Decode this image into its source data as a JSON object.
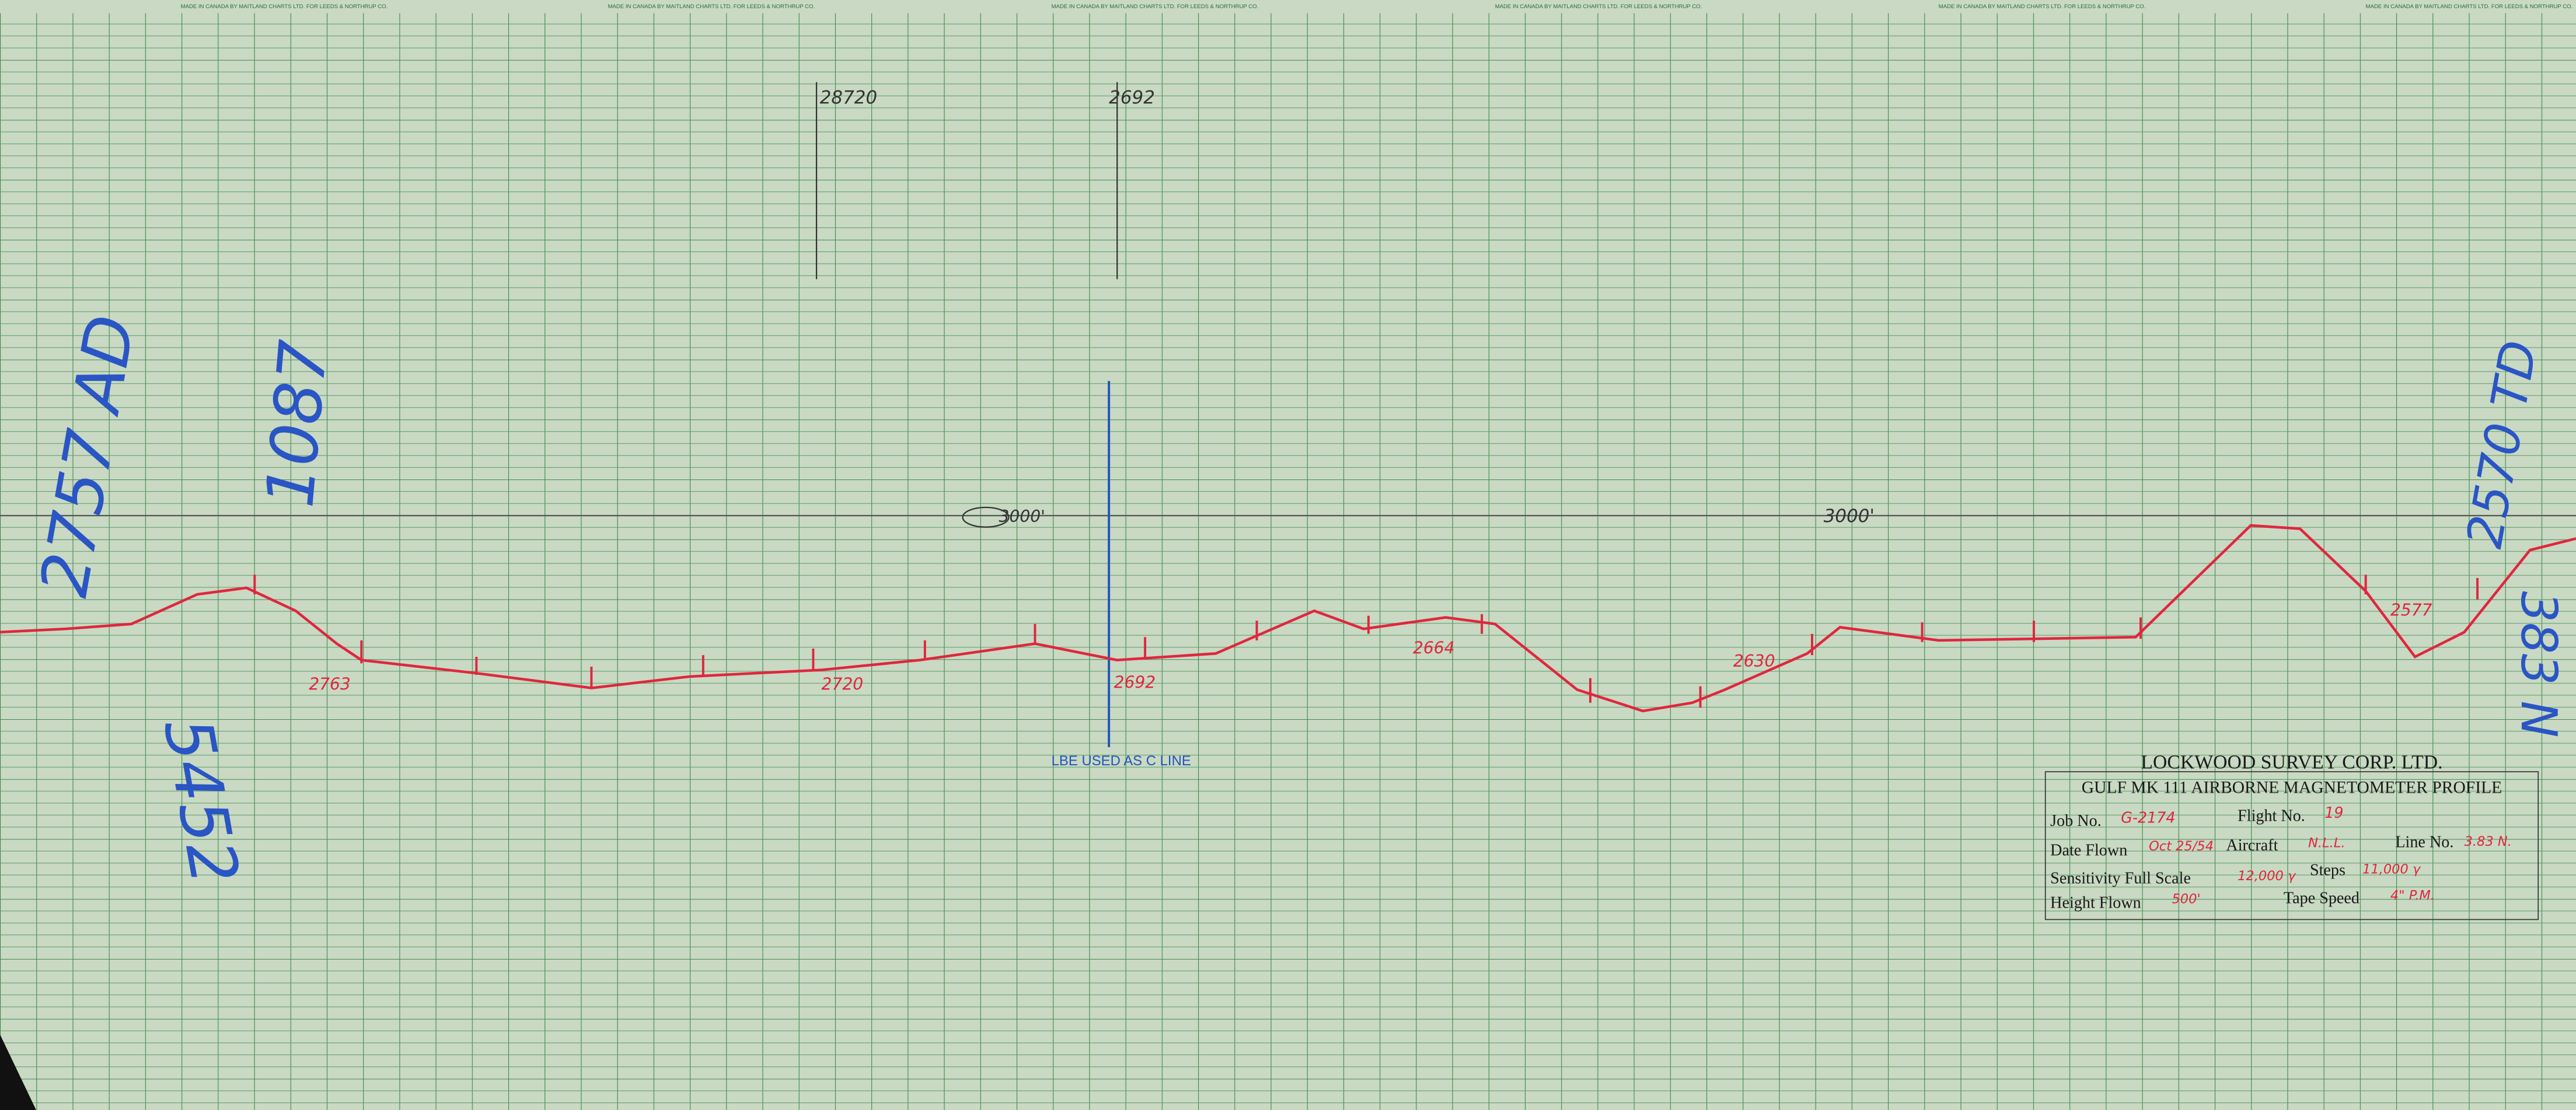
{
  "margin_text": "MADE IN CANADA BY MAITLAND CHARTS LTD. FOR LEEDS & NORTHRUP CO.",
  "title_block": {
    "company": "LOCKWOOD SURVEY CORP. LTD.",
    "profile": "GULF MK 111 AIRBORNE MAGNETOMETER PROFILE",
    "fields": [
      {
        "label": "Job No.",
        "value": "G-2174"
      },
      {
        "label": "Flight No.",
        "value": "19"
      },
      {
        "label": "Date Flown",
        "value": "Oct 25/54"
      },
      {
        "label": "Aircraft",
        "value": "N.L.L."
      },
      {
        "label": "Line No.",
        "value": "3.83 N."
      },
      {
        "label": "Sensitivity Full Scale",
        "value": "12,000 γ"
      },
      {
        "label": "Steps",
        "value": "11,000 γ"
      },
      {
        "label": "Height Flown",
        "value": "500'"
      },
      {
        "label": "Tape Speed",
        "value": "4\" P.M."
      }
    ]
  },
  "annotations": {
    "top_marks": [
      "28720",
      "2692"
    ],
    "altitude": [
      "3000'",
      "3000'"
    ],
    "fiducials": [
      "2763",
      "2720",
      "2692",
      "2664",
      "2630",
      "2577"
    ],
    "blue_line_label": "LBE USED AS C LINE",
    "blue_notes": [
      "2757 AD",
      "1087",
      "5452",
      "2570 TD",
      "383 N"
    ]
  }
}
